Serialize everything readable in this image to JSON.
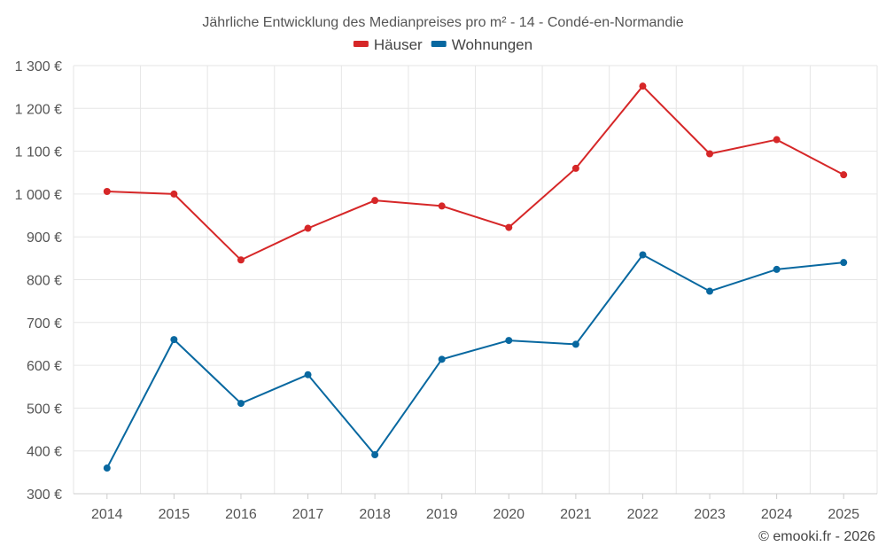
{
  "chart_data": {
    "type": "line",
    "title": "Jährliche Entwicklung des Medianpreises pro m² - 14 - Condé-en-Normandie",
    "categories": [
      "2014",
      "2015",
      "2016",
      "2017",
      "2018",
      "2019",
      "2020",
      "2021",
      "2022",
      "2023",
      "2024",
      "2025"
    ],
    "series": [
      {
        "name": "Häuser",
        "color": "#d62728",
        "values": [
          1006,
          1000,
          846,
          920,
          985,
          972,
          922,
          1060,
          1252,
          1094,
          1127,
          1045
        ]
      },
      {
        "name": "Wohnungen",
        "color": "#0868a0",
        "values": [
          360,
          660,
          511,
          578,
          391,
          614,
          658,
          649,
          858,
          773,
          824,
          840
        ]
      }
    ],
    "ylim": [
      300,
      1300
    ],
    "yticks": [
      300,
      400,
      500,
      600,
      700,
      800,
      900,
      1000,
      1100,
      1200,
      1300
    ],
    "ytick_labels": [
      "300 €",
      "400 €",
      "500 €",
      "600 €",
      "700 €",
      "800 €",
      "900 €",
      "1 000 €",
      "1 100 €",
      "1 200 €",
      "1 300 €"
    ],
    "grid": true,
    "legend_position": "top-center",
    "credit": "© emooki.fr - 2026"
  }
}
